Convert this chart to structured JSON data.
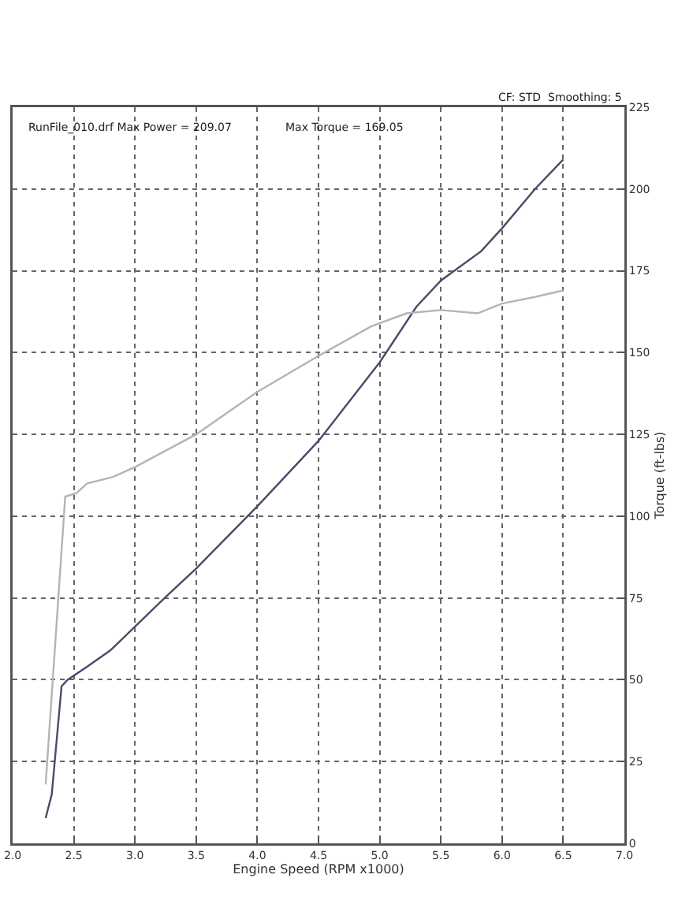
{
  "chart_data": {
    "type": "line",
    "xlabel": "Engine Speed (RPM x1000)",
    "ylabel": "Torque (ft-lbs)",
    "annotations": [
      "RunFile_010.drf Max Power = 209.07",
      "Max Torque = 169.05",
      "CF: STD  Smoothing: 5"
    ],
    "series": [
      {
        "color": "#4a4a6a",
        "x": [
          2.27,
          2.32,
          2.4,
          2.45,
          2.61,
          2.8,
          3.27,
          3.5,
          4.0,
          4.5,
          5.0,
          5.3,
          5.5,
          5.83,
          6.0,
          6.27,
          6.5
        ],
        "values": [
          7.7,
          15,
          48,
          50,
          54,
          59,
          76,
          84,
          103,
          123,
          147,
          164,
          172,
          181,
          188,
          200,
          209
        ]
      },
      {
        "color": "#b4b4b4",
        "x": [
          2.27,
          2.43,
          2.52,
          2.61,
          2.82,
          3.0,
          3.5,
          4.0,
          4.5,
          4.93,
          5.22,
          5.5,
          5.8,
          6.0,
          6.27,
          6.5
        ],
        "values": [
          18,
          106,
          107,
          110,
          112,
          115,
          125,
          138,
          149,
          158,
          162,
          163,
          162,
          165,
          167,
          169
        ]
      }
    ],
    "xlim": [
      2,
      7
    ],
    "xticks": [
      {
        "value": 2,
        "label": "2.0"
      },
      2.5,
      {
        "value": 3,
        "label": "3.0"
      },
      3.5,
      {
        "value": 4,
        "label": "4.0"
      },
      4.5,
      {
        "value": 5,
        "label": "5.0"
      },
      5.5,
      {
        "value": 6,
        "label": "6.0"
      },
      6.5,
      {
        "value": 7,
        "label": "7.0"
      }
    ],
    "ylim": [
      0,
      225
    ],
    "yticks": [
      0,
      25,
      50,
      75,
      100,
      125,
      150,
      175,
      200,
      225
    ],
    "grid": true,
    "marker": "none",
    "line_style": "solid"
  }
}
